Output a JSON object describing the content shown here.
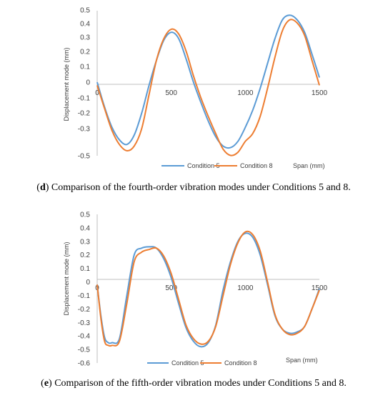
{
  "chart_data": [
    {
      "type": "line",
      "caption_letter": "d",
      "caption_rest": ") Comparison of the fourth-order vibration modes under Conditions 5 and 8.",
      "ylabel": "Displacement mode (mm)",
      "xlabel": "Span (mm)",
      "xlim": [
        0,
        1500
      ],
      "x_ticks": [
        "0",
        "500",
        "1000",
        "1500"
      ],
      "y_ticks": [
        "0.5",
        "0.4",
        "0.3",
        "0.2",
        "0.1",
        "0",
        "-0.1",
        "-0.2",
        "-0.3",
        "-0.5"
      ],
      "series": [
        {
          "name": "Condition 5",
          "color": "#5b9bd5",
          "x": [
            0,
            50,
            100,
            150,
            200,
            250,
            300,
            350,
            400,
            450,
            500,
            550,
            600,
            650,
            700,
            750,
            800,
            850,
            900,
            950,
            1000,
            1050,
            1100,
            1150,
            1200,
            1250,
            1300,
            1350,
            1400,
            1450,
            1500
          ],
          "y": [
            0.0,
            -0.16,
            -0.29,
            -0.37,
            -0.4,
            -0.34,
            -0.2,
            -0.02,
            0.14,
            0.27,
            0.32,
            0.28,
            0.15,
            0.0,
            -0.13,
            -0.25,
            -0.35,
            -0.41,
            -0.42,
            -0.38,
            -0.29,
            -0.18,
            -0.04,
            0.12,
            0.28,
            0.4,
            0.43,
            0.4,
            0.32,
            0.18,
            0.03
          ]
        },
        {
          "name": "Condition 8",
          "color": "#ed7d31",
          "x": [
            0,
            50,
            100,
            150,
            200,
            250,
            300,
            350,
            400,
            450,
            500,
            550,
            600,
            650,
            700,
            750,
            800,
            850,
            900,
            950,
            1000,
            1050,
            1100,
            1150,
            1200,
            1250,
            1300,
            1350,
            1400,
            1450,
            1500
          ],
          "y": [
            -0.02,
            -0.17,
            -0.31,
            -0.4,
            -0.44,
            -0.41,
            -0.3,
            -0.08,
            0.14,
            0.28,
            0.34,
            0.31,
            0.2,
            0.04,
            -0.1,
            -0.22,
            -0.33,
            -0.43,
            -0.47,
            -0.45,
            -0.38,
            -0.33,
            -0.22,
            -0.04,
            0.16,
            0.33,
            0.4,
            0.38,
            0.3,
            0.14,
            -0.02
          ]
        }
      ]
    },
    {
      "type": "line",
      "caption_letter": "e",
      "caption_rest": ") Comparison of the fifth-order vibration modes under Conditions 5 and 8.",
      "ylabel": "Displacement mode (mm)",
      "xlabel": "Span (mm)",
      "xlim": [
        0,
        1500
      ],
      "ylim": [
        -0.6,
        0.5
      ],
      "x_ticks": [
        "0",
        "500",
        "1000",
        "1500"
      ],
      "y_ticks": [
        "0.5",
        "0.4",
        "0.3",
        "0.2",
        "0.1",
        "0",
        "-0.1",
        "-0.2",
        "-0.3",
        "-0.4",
        "-0.5",
        "-0.6"
      ],
      "series": [
        {
          "name": "Condition 5",
          "color": "#5b9bd5",
          "x": [
            0,
            25,
            50,
            75,
            100,
            150,
            200,
            250,
            300,
            350,
            400,
            450,
            500,
            550,
            600,
            650,
            700,
            750,
            800,
            850,
            900,
            950,
            1000,
            1050,
            1100,
            1150,
            1200,
            1250,
            1300,
            1350,
            1400,
            1450,
            1500
          ],
          "y": [
            -0.02,
            -0.25,
            -0.41,
            -0.45,
            -0.45,
            -0.42,
            -0.1,
            0.2,
            0.25,
            0.26,
            0.25,
            0.17,
            0.03,
            -0.16,
            -0.34,
            -0.44,
            -0.48,
            -0.45,
            -0.32,
            -0.06,
            0.15,
            0.3,
            0.36,
            0.33,
            0.2,
            -0.02,
            -0.25,
            -0.35,
            -0.38,
            -0.37,
            -0.33,
            -0.2,
            -0.05
          ]
        },
        {
          "name": "Condition 8",
          "color": "#ed7d31",
          "x": [
            0,
            25,
            50,
            75,
            100,
            150,
            200,
            250,
            300,
            350,
            400,
            450,
            500,
            550,
            600,
            650,
            700,
            750,
            800,
            850,
            900,
            950,
            1000,
            1050,
            1100,
            1150,
            1200,
            1250,
            1300,
            1350,
            1400,
            1450,
            1500
          ],
          "y": [
            -0.02,
            -0.27,
            -0.44,
            -0.47,
            -0.47,
            -0.44,
            -0.16,
            0.15,
            0.22,
            0.24,
            0.25,
            0.19,
            0.06,
            -0.13,
            -0.32,
            -0.42,
            -0.46,
            -0.44,
            -0.33,
            -0.1,
            0.13,
            0.29,
            0.37,
            0.35,
            0.23,
            0.0,
            -0.24,
            -0.35,
            -0.39,
            -0.38,
            -0.33,
            -0.2,
            -0.06
          ]
        }
      ]
    }
  ]
}
